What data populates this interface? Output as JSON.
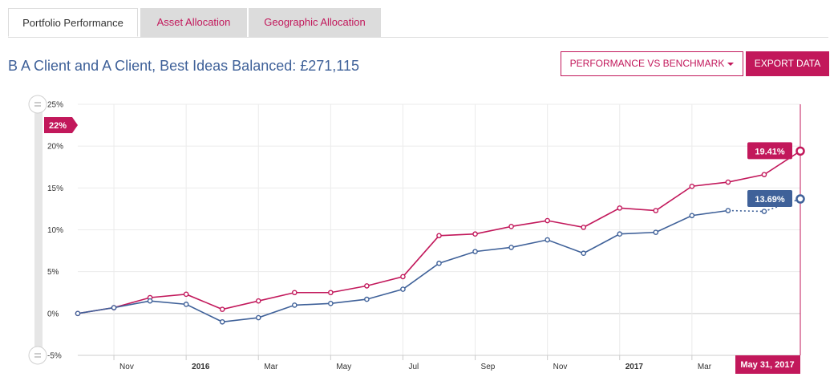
{
  "tabs": [
    {
      "label": "Portfolio Performance",
      "active": true
    },
    {
      "label": "Asset Allocation",
      "active": false
    },
    {
      "label": "Geographic Allocation",
      "active": false
    }
  ],
  "header": {
    "title": "B A Client and A Client, Best Ideas Balanced: £271,115",
    "perf_button": "PERFORMANCE VS BENCHMARK",
    "export_button": "EXPORT DATA"
  },
  "slider": {
    "top_value": "22%"
  },
  "colors": {
    "portfolio": "#c2185b",
    "benchmark": "#3f6199",
    "grid": "#ebebeb"
  },
  "chart_data": {
    "type": "line",
    "title": "",
    "xlabel": "",
    "ylabel": "",
    "ylim": [
      -5,
      25
    ],
    "yticks": [
      "25%",
      "20%",
      "15%",
      "10%",
      "5%",
      "0%",
      "-5%"
    ],
    "ytick_values": [
      25,
      20,
      15,
      10,
      5,
      0,
      -5
    ],
    "x_ticks": [
      {
        "label": "Nov",
        "bold": false
      },
      {
        "label": "2016",
        "bold": true
      },
      {
        "label": "Mar",
        "bold": false
      },
      {
        "label": "May",
        "bold": false
      },
      {
        "label": "Jul",
        "bold": false
      },
      {
        "label": "Sep",
        "bold": false
      },
      {
        "label": "Nov",
        "bold": false
      },
      {
        "label": "2017",
        "bold": true
      },
      {
        "label": "Mar",
        "bold": false
      }
    ],
    "x": [
      "2015-09-30",
      "2015-10-31",
      "2015-11-30",
      "2015-12-31",
      "2016-01-31",
      "2016-02-29",
      "2016-03-31",
      "2016-04-30",
      "2016-05-31",
      "2016-06-30",
      "2016-07-31",
      "2016-08-31",
      "2016-09-30",
      "2016-10-31",
      "2016-11-30",
      "2016-12-31",
      "2017-01-31",
      "2017-02-28",
      "2017-03-31",
      "2017-04-30",
      "2017-05-31"
    ],
    "series": [
      {
        "values": [
          0,
          0.7,
          1.9,
          2.3,
          0.5,
          1.5,
          2.5,
          2.5,
          3.3,
          4.4,
          9.3,
          9.5,
          10.4,
          11.1,
          10.3,
          12.6,
          12.3,
          15.2,
          15.7,
          16.6,
          19.41
        ]
      },
      {
        "values": [
          0,
          0.7,
          1.5,
          1.1,
          -1.0,
          -0.5,
          1.0,
          1.2,
          1.7,
          2.9,
          6.0,
          7.4,
          7.9,
          8.8,
          7.2,
          9.5,
          9.7,
          11.7,
          12.3,
          12.2,
          13.69
        ]
      }
    ],
    "end_labels": [
      "19.41%",
      "13.69%"
    ],
    "date_label": "May 31, 2017",
    "grid": true
  }
}
